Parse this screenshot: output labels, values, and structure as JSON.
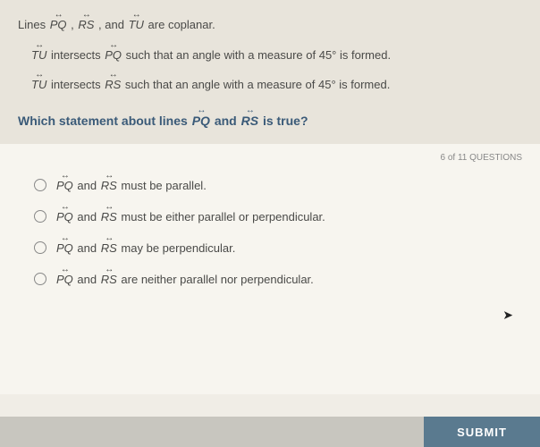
{
  "problem": {
    "intro_prefix": "Lines  ",
    "intro_suffix": "  are coplanar.",
    "sep1": " , ",
    "sep2": ", and ",
    "stmt1_a": "  intersects  ",
    "stmt1_b": "  such that an angle with a measure of 45° is formed.",
    "stmt2_a": "  intersects  ",
    "stmt2_b": "  such that an angle with a measure of 45° is formed.",
    "question_a": "Which statement about lines  ",
    "question_mid": "  and  ",
    "question_b": "  is true?"
  },
  "lines": {
    "pq": "PQ",
    "rs": "RS",
    "tu": "TU"
  },
  "counter": "6 of 11 QUESTIONS",
  "options": [
    {
      "pre": "",
      "mid": " and ",
      "post": " must be parallel."
    },
    {
      "pre": "",
      "mid": " and ",
      "post": " must be either parallel or perpendicular."
    },
    {
      "pre": "",
      "mid": " and ",
      "post": " may be perpendicular."
    },
    {
      "pre": "",
      "mid": " and ",
      "post": " are neither parallel nor perpendicular."
    }
  ],
  "submit": "SUBMIT",
  "colors": {
    "top_bg": "#e8e4db",
    "bottom_bg": "#f7f5ef",
    "question_color": "#3a5a78",
    "submit_bg": "#5a7a8f"
  }
}
